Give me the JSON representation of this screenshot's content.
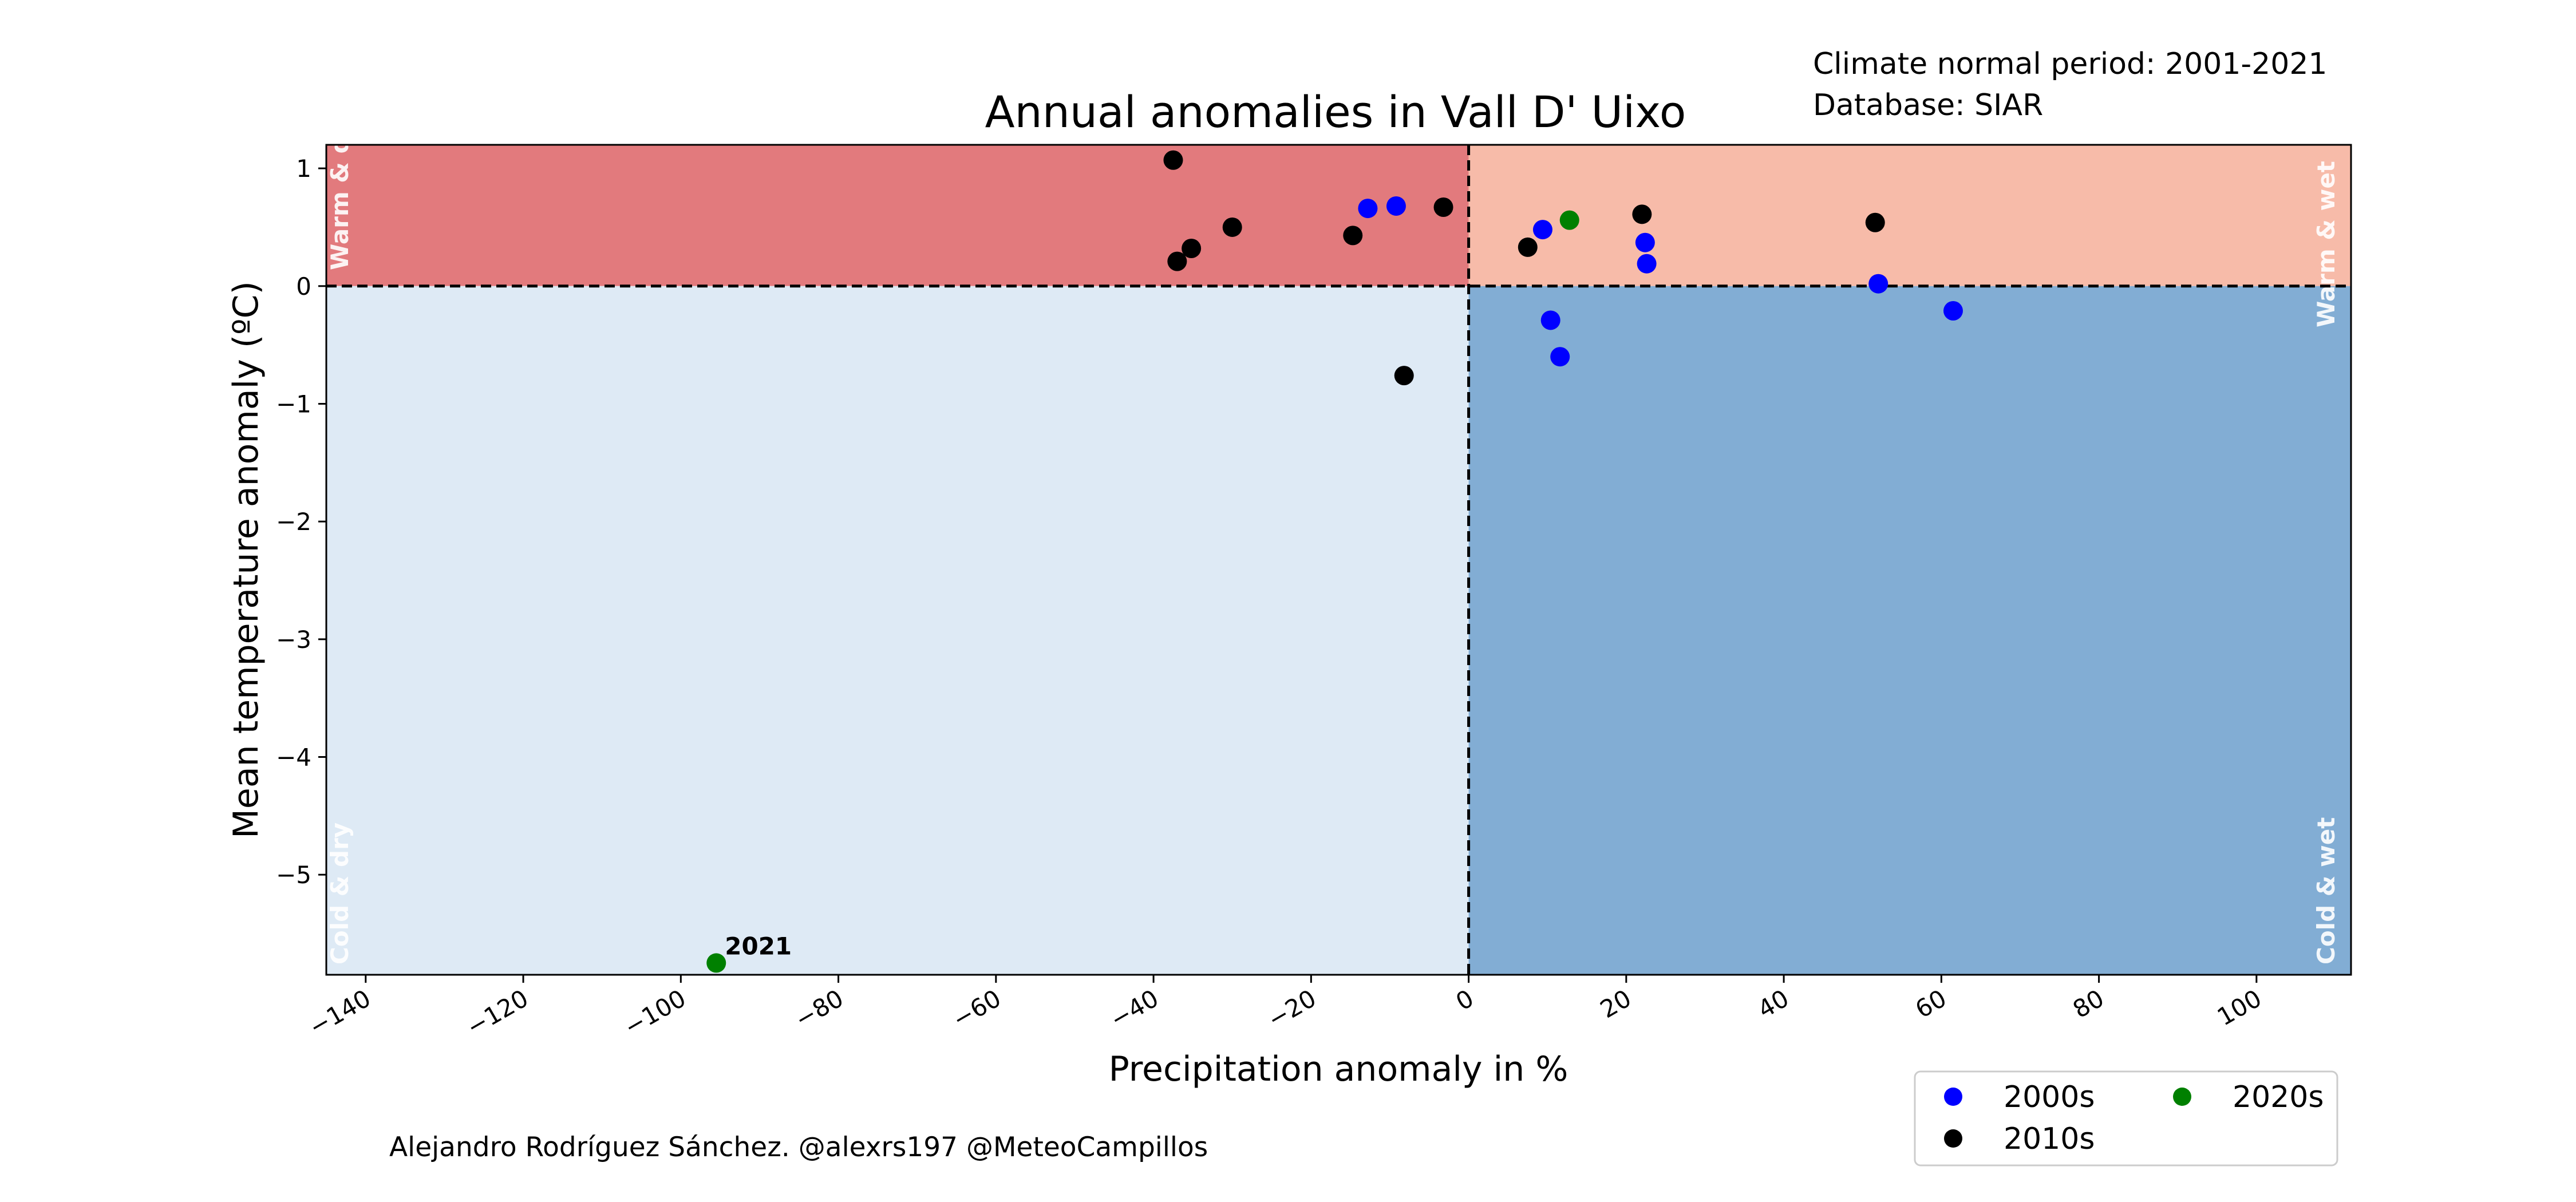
{
  "figure": {
    "title": "Annual anomalies in Vall D' Uixo",
    "climate_period": "Climate normal period: 2001-2021",
    "database": "Database: SIAR",
    "credit": "Alejandro Rodríguez Sánchez. @alexrs197 @MeteoCampillos"
  },
  "chart_data": {
    "type": "scatter",
    "title": "Annual anomalies in Vall D' Uixo",
    "xlabel": "Precipitation anomaly in %",
    "ylabel": "Mean temperature anomaly (ºC)",
    "xlim": [
      -145,
      112
    ],
    "ylim": [
      -5.85,
      1.2
    ],
    "xticks": [
      -140,
      -120,
      -100,
      -80,
      -60,
      -40,
      -20,
      0,
      20,
      40,
      60,
      80,
      100
    ],
    "xtick_labels": [
      "−140",
      "−120",
      "−100",
      "−80",
      "−60",
      "−40",
      "−20",
      "0",
      "20",
      "40",
      "60",
      "80",
      "100"
    ],
    "yticks": [
      1,
      0,
      -1,
      -2,
      -3,
      -4,
      -5
    ],
    "ytick_labels": [
      "1",
      "0",
      "−1",
      "−2",
      "−3",
      "−4",
      "−5"
    ],
    "grid": false,
    "legend_position": "below-right",
    "legend_columns": 2,
    "quadrants": [
      {
        "name": "warm-dry",
        "label": "Warm & dry",
        "color": "#e27a7d",
        "corner": "top-left"
      },
      {
        "name": "warm-wet",
        "label": "Warm & wet",
        "color": "#f7bba9",
        "corner": "top-right"
      },
      {
        "name": "cold-dry",
        "label": "Cold & dry",
        "color": "#deeaf5",
        "corner": "bottom-left"
      },
      {
        "name": "cold-wet",
        "label": "Cold & wet",
        "color": "#82add4",
        "corner": "bottom-right"
      }
    ],
    "series": [
      {
        "name": "2000s",
        "color": "#0000ff",
        "points": [
          {
            "x": -12.8,
            "y": 0.66
          },
          {
            "x": -9.2,
            "y": 0.68
          },
          {
            "x": 9.4,
            "y": 0.48
          },
          {
            "x": 10.4,
            "y": -0.29
          },
          {
            "x": 11.6,
            "y": -0.6
          },
          {
            "x": 22.4,
            "y": 0.37
          },
          {
            "x": 22.6,
            "y": 0.19
          },
          {
            "x": 52,
            "y": 0.02
          },
          {
            "x": 61.5,
            "y": -0.21
          }
        ]
      },
      {
        "name": "2010s",
        "color": "#000000",
        "points": [
          {
            "x": -37.5,
            "y": 1.07
          },
          {
            "x": -37,
            "y": 0.21
          },
          {
            "x": -35.2,
            "y": 0.32
          },
          {
            "x": -30,
            "y": 0.5
          },
          {
            "x": -14.7,
            "y": 0.43
          },
          {
            "x": -8.2,
            "y": -0.76
          },
          {
            "x": -3.2,
            "y": 0.67
          },
          {
            "x": 7.5,
            "y": 0.33
          },
          {
            "x": 22,
            "y": 0.61
          },
          {
            "x": 51.6,
            "y": 0.54
          }
        ]
      },
      {
        "name": "2020s",
        "color": "#008000",
        "points": [
          {
            "x": 12.8,
            "y": 0.56
          },
          {
            "x": -95.5,
            "y": -5.75,
            "label": "2021"
          }
        ]
      }
    ]
  }
}
